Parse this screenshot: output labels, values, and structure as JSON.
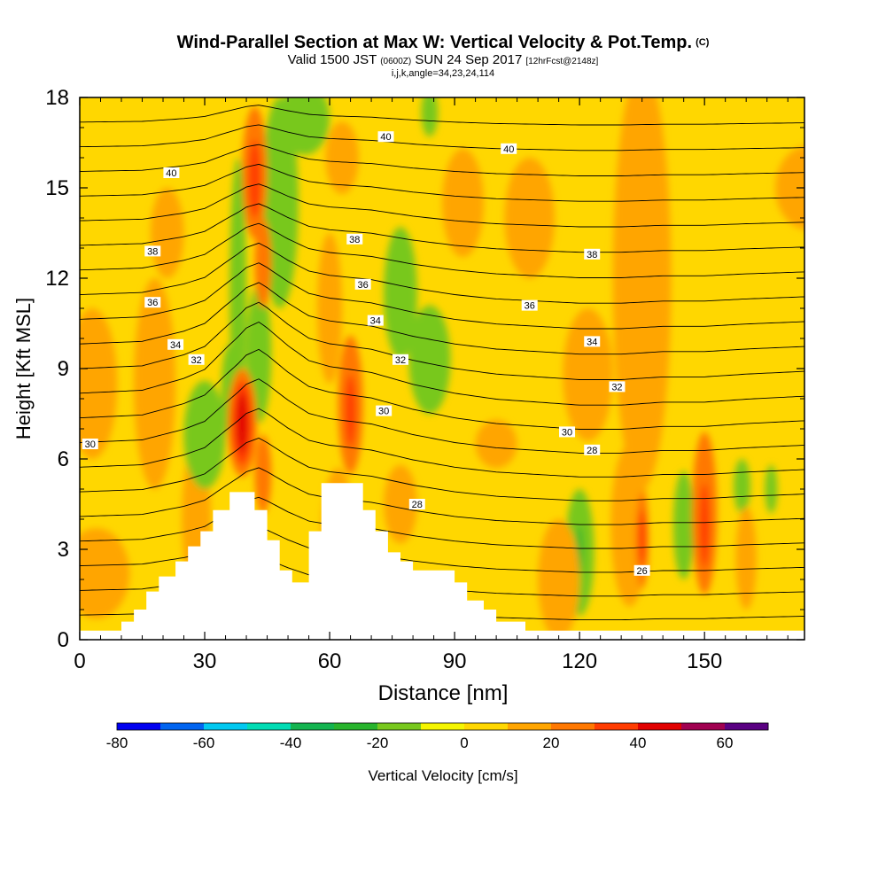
{
  "title": {
    "line1": "Wind-Parallel Section at Max W: Vertical Velocity & Pot.Temp.",
    "copyright": "(C)",
    "valid_prefix": "Valid 1500 JST",
    "valid_z": "(0600Z)",
    "valid_date": "SUN 24 Sep 2017",
    "valid_fcst": "[12hrFcst@2148z]",
    "line3": "i,j,k,angle=34,23,24,114"
  },
  "chart_data": {
    "type": "heatmap",
    "title": "Wind-Parallel Section at Max W: Vertical Velocity & Pot.Temp.",
    "xlabel": "Distance [nm]",
    "ylabel": "Height [Kft MSL]",
    "xlim": [
      0,
      174
    ],
    "ylim": [
      0,
      18
    ],
    "xticks": [
      "0",
      "30",
      "60",
      "90",
      "120",
      "150"
    ],
    "yticks": [
      "0",
      "3",
      "6",
      "9",
      "12",
      "15",
      "18"
    ],
    "colorbar": {
      "label": "Vertical Velocity [cm/s]",
      "bounds": [
        -80,
        -70,
        -60,
        -50,
        -40,
        -30,
        -20,
        -10,
        0,
        10,
        20,
        30,
        40,
        50,
        60,
        70
      ],
      "colors": [
        "#0000f0",
        "#0064f0",
        "#00c8f0",
        "#00dcb4",
        "#14b450",
        "#28b42d",
        "#78c81e",
        "#f5f500",
        "#ffd700",
        "#ffa500",
        "#ff7800",
        "#ff3c00",
        "#e10000",
        "#a00050",
        "#5a0082"
      ],
      "tick_labels": [
        "-80",
        "-60",
        "-40",
        "-20",
        "0",
        "20",
        "40",
        "60"
      ]
    },
    "background_value": 5,
    "terrain_kft": [
      [
        0,
        0.3
      ],
      [
        10,
        0.3
      ],
      [
        10,
        0.6
      ],
      [
        13,
        0.6
      ],
      [
        13,
        1.0
      ],
      [
        16,
        1.0
      ],
      [
        16,
        1.6
      ],
      [
        19,
        1.6
      ],
      [
        19,
        2.1
      ],
      [
        23,
        2.1
      ],
      [
        23,
        2.6
      ],
      [
        26,
        2.6
      ],
      [
        26,
        3.1
      ],
      [
        29,
        3.1
      ],
      [
        29,
        3.6
      ],
      [
        32,
        3.6
      ],
      [
        32,
        4.3
      ],
      [
        36,
        4.3
      ],
      [
        36,
        4.9
      ],
      [
        42,
        4.9
      ],
      [
        42,
        4.3
      ],
      [
        45,
        4.3
      ],
      [
        45,
        3.3
      ],
      [
        48,
        3.3
      ],
      [
        48,
        2.3
      ],
      [
        51,
        2.3
      ],
      [
        51,
        1.9
      ],
      [
        55,
        1.9
      ],
      [
        55,
        3.6
      ],
      [
        58,
        3.6
      ],
      [
        58,
        5.2
      ],
      [
        68,
        5.2
      ],
      [
        68,
        4.3
      ],
      [
        71,
        4.3
      ],
      [
        71,
        3.6
      ],
      [
        74,
        3.6
      ],
      [
        74,
        2.9
      ],
      [
        77,
        2.9
      ],
      [
        77,
        2.6
      ],
      [
        80,
        2.6
      ],
      [
        80,
        2.3
      ],
      [
        90,
        2.3
      ],
      [
        90,
        1.9
      ],
      [
        93,
        1.9
      ],
      [
        93,
        1.3
      ],
      [
        97,
        1.3
      ],
      [
        97,
        1.0
      ],
      [
        100,
        1.0
      ],
      [
        100,
        0.6
      ],
      [
        107,
        0.6
      ],
      [
        107,
        0.3
      ],
      [
        174,
        0.3
      ]
    ],
    "w_features": [
      {
        "x": 18,
        "y": 8.5,
        "rx": 5,
        "ry": 3.5,
        "w": 12
      },
      {
        "x": 21,
        "y": 13.5,
        "rx": 4,
        "ry": 1.5,
        "w": 12
      },
      {
        "x": 28,
        "y": 4.0,
        "rx": 3.5,
        "ry": 2.5,
        "w": 12
      },
      {
        "x": 30,
        "y": 6.8,
        "rx": 5,
        "ry": 1.8,
        "w": -15
      },
      {
        "x": 36,
        "y": 8.3,
        "rx": 2,
        "ry": 1.5,
        "w": -15
      },
      {
        "x": 38,
        "y": 11.5,
        "rx": 2,
        "ry": 4.5,
        "w": -15
      },
      {
        "x": 43,
        "y": 9.5,
        "rx": 3,
        "ry": 2.3,
        "w": -15
      },
      {
        "x": 48,
        "y": 14.5,
        "rx": 4.5,
        "ry": 3.5,
        "w": -15
      },
      {
        "x": 54,
        "y": 17.3,
        "rx": 6,
        "ry": 1.2,
        "w": -15
      },
      {
        "x": 77,
        "y": 11.5,
        "rx": 4,
        "ry": 2.2,
        "w": -15
      },
      {
        "x": 84,
        "y": 9.3,
        "rx": 5,
        "ry": 1.8,
        "w": -15
      },
      {
        "x": 84,
        "y": 17.5,
        "rx": 2,
        "ry": 0.8,
        "w": -15
      },
      {
        "x": 120,
        "y": 2.9,
        "rx": 3.5,
        "ry": 2.1,
        "w": -15
      },
      {
        "x": 137,
        "y": 7.6,
        "rx": 2,
        "ry": 1.1,
        "w": -15
      },
      {
        "x": 145,
        "y": 3.8,
        "rx": 2.5,
        "ry": 1.8,
        "w": -15
      },
      {
        "x": 159,
        "y": 5.1,
        "rx": 2,
        "ry": 0.9,
        "w": -15
      },
      {
        "x": 166,
        "y": 5.0,
        "rx": 1.5,
        "ry": 0.8,
        "w": -15
      },
      {
        "x": 120,
        "y": 3.0,
        "rx": 0.7,
        "ry": 0.8,
        "w": -25
      },
      {
        "x": 39,
        "y": 7.2,
        "rx": 3.5,
        "ry": 1.8,
        "w": 22
      },
      {
        "x": 39,
        "y": 7.2,
        "rx": 2.5,
        "ry": 1.4,
        "w": 35
      },
      {
        "x": 39,
        "y": 7.2,
        "rx": 1.3,
        "ry": 1.0,
        "w": 45
      },
      {
        "x": 42,
        "y": 15.5,
        "rx": 3,
        "ry": 2.2,
        "w": 22
      },
      {
        "x": 42,
        "y": 15.3,
        "rx": 1.5,
        "ry": 1.3,
        "w": 35
      },
      {
        "x": 44,
        "y": 12.5,
        "rx": 2,
        "ry": 1.5,
        "w": 22
      },
      {
        "x": 44,
        "y": 5.5,
        "rx": 2,
        "ry": 1.3,
        "w": 22
      },
      {
        "x": 65,
        "y": 7.8,
        "rx": 3,
        "ry": 2.3,
        "w": 22
      },
      {
        "x": 65,
        "y": 7.6,
        "rx": 1.3,
        "ry": 1.2,
        "w": 35
      },
      {
        "x": 77,
        "y": 4.5,
        "rx": 4,
        "ry": 1.3,
        "w": 15
      },
      {
        "x": 100,
        "y": 6.5,
        "rx": 5,
        "ry": 0.8,
        "w": 15
      },
      {
        "x": 115,
        "y": 2.0,
        "rx": 5,
        "ry": 2.0,
        "w": 15
      },
      {
        "x": 122,
        "y": 8.8,
        "rx": 6,
        "ry": 2.2,
        "w": 15
      },
      {
        "x": 132,
        "y": 3.8,
        "rx": 4.5,
        "ry": 2.7,
        "w": 15
      },
      {
        "x": 135,
        "y": 3.3,
        "rx": 1.6,
        "ry": 1.6,
        "w": 22
      },
      {
        "x": 135,
        "y": 3.4,
        "rx": 0.8,
        "ry": 0.9,
        "w": 35
      },
      {
        "x": 150,
        "y": 4.2,
        "rx": 3,
        "ry": 2.7,
        "w": 22
      },
      {
        "x": 150,
        "y": 3.8,
        "rx": 1.2,
        "ry": 1.4,
        "w": 35
      },
      {
        "x": 160,
        "y": 2.7,
        "rx": 2.5,
        "ry": 1.7,
        "w": 15
      },
      {
        "x": 175,
        "y": 15.0,
        "rx": 8,
        "ry": 1.4,
        "w": 15
      },
      {
        "x": 135,
        "y": 12.0,
        "rx": 7,
        "ry": 7.0,
        "w": 15
      },
      {
        "x": 92,
        "y": 14.5,
        "rx": 5,
        "ry": 1.8,
        "w": 15
      },
      {
        "x": 108,
        "y": 14.0,
        "rx": 6,
        "ry": 2.0,
        "w": 15
      },
      {
        "x": 63,
        "y": 16.0,
        "rx": 4,
        "ry": 1.2,
        "w": 15
      },
      {
        "x": 60,
        "y": 11.0,
        "rx": 3,
        "ry": 2.5,
        "w": 15
      },
      {
        "x": 3,
        "y": 8.5,
        "rx": 6,
        "ry": 2.5,
        "w": 15
      },
      {
        "x": 4,
        "y": 2.2,
        "rx": 8,
        "ry": 1.5,
        "w": 15
      },
      {
        "x": 62,
        "y": 3.5,
        "rx": 4,
        "ry": 2.2,
        "w": 15
      }
    ],
    "isentropes": {
      "theta_bottom": 20,
      "theta_top": 42,
      "interval": 1,
      "profile_x": [
        0,
        15,
        25,
        30,
        35,
        38,
        40,
        43,
        45,
        50,
        55,
        60,
        65,
        70,
        75,
        80,
        90,
        100,
        110,
        120,
        130,
        140,
        150,
        160,
        174
      ],
      "profile_shift": [
        0,
        0.1,
        0.5,
        0.8,
        1.5,
        1.9,
        2.2,
        2.4,
        2.2,
        1.6,
        1.1,
        0.9,
        0.8,
        0.7,
        0.5,
        0.3,
        0,
        -0.2,
        -0.3,
        -0.4,
        -0.4,
        -0.3,
        -0.3,
        -0.2,
        -0.1
      ]
    },
    "contour_labels": [
      {
        "x": 2.5,
        "y": 6.5,
        "text": "30"
      },
      {
        "x": 23,
        "y": 9.8,
        "text": "34"
      },
      {
        "x": 17.5,
        "y": 11.2,
        "text": "36"
      },
      {
        "x": 17.5,
        "y": 12.9,
        "text": "38"
      },
      {
        "x": 22,
        "y": 15.5,
        "text": "40"
      },
      {
        "x": 28,
        "y": 9.3,
        "text": "32"
      },
      {
        "x": 73.5,
        "y": 16.7,
        "text": "40"
      },
      {
        "x": 66,
        "y": 13.3,
        "text": "38"
      },
      {
        "x": 68,
        "y": 11.8,
        "text": "36"
      },
      {
        "x": 71,
        "y": 10.6,
        "text": "34"
      },
      {
        "x": 77,
        "y": 9.3,
        "text": "32"
      },
      {
        "x": 73,
        "y": 7.6,
        "text": "30"
      },
      {
        "x": 81,
        "y": 4.5,
        "text": "28"
      },
      {
        "x": 103,
        "y": 16.3,
        "text": "40"
      },
      {
        "x": 108,
        "y": 11.1,
        "text": "36"
      },
      {
        "x": 123,
        "y": 12.8,
        "text": "38"
      },
      {
        "x": 123,
        "y": 9.9,
        "text": "34"
      },
      {
        "x": 129,
        "y": 8.4,
        "text": "32"
      },
      {
        "x": 117,
        "y": 6.9,
        "text": "30"
      },
      {
        "x": 123,
        "y": 6.3,
        "text": "28"
      },
      {
        "x": 135,
        "y": 2.3,
        "text": "26"
      }
    ]
  }
}
